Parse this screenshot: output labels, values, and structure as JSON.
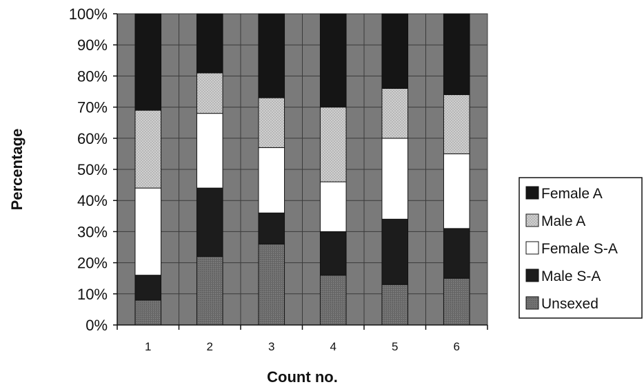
{
  "chart_data": {
    "type": "bar",
    "stacked": true,
    "categories": [
      "1",
      "2",
      "3",
      "4",
      "5",
      "6"
    ],
    "series": [
      {
        "name": "Unsexed",
        "values": [
          8,
          22,
          26,
          16,
          13,
          15
        ],
        "color": "#6f6f6f"
      },
      {
        "name": "Male S-A",
        "values": [
          8,
          22,
          10,
          14,
          21,
          16
        ],
        "color": "#1c1c1c"
      },
      {
        "name": "Female S-A",
        "values": [
          28,
          24,
          21,
          16,
          26,
          24
        ],
        "color": "#ffffff"
      },
      {
        "name": "Male A",
        "values": [
          25,
          13,
          16,
          24,
          16,
          19
        ],
        "color": "#c4c4c4"
      },
      {
        "name": "Female A",
        "values": [
          31,
          19,
          27,
          30,
          24,
          26
        ],
        "color": "#151515"
      }
    ],
    "legend_order": [
      "Female A",
      "Male A",
      "Female S-A",
      "Male S-A",
      "Unsexed"
    ],
    "y_ticks": [
      "0%",
      "10%",
      "20%",
      "30%",
      "40%",
      "50%",
      "60%",
      "70%",
      "80%",
      "90%",
      "100%"
    ],
    "xlabel": "Count no.",
    "ylabel": "Percentage",
    "ylim": [
      0,
      100
    ],
    "grid": true,
    "plot_background": "#7a7a7a",
    "legend_position": "right"
  }
}
